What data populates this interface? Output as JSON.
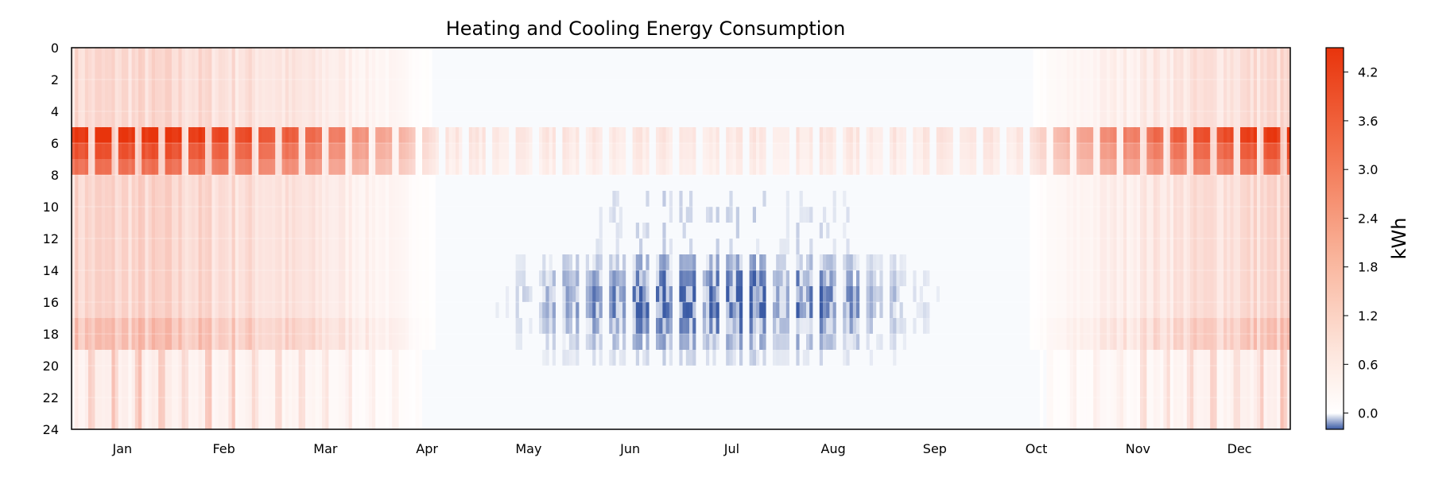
{
  "chart_data": {
    "type": "heatmap",
    "title": "Heating and Cooling Energy Consumption",
    "xlabel": "",
    "ylabel": "",
    "x_tick_labels": [
      "Jan",
      "Feb",
      "Mar",
      "Apr",
      "May",
      "Jun",
      "Jul",
      "Aug",
      "Sep",
      "Oct",
      "Nov",
      "Dec"
    ],
    "x_range_days": [
      1,
      365
    ],
    "y_range_hours": [
      0,
      24
    ],
    "y_tick_labels": [
      "0",
      "2",
      "4",
      "6",
      "8",
      "10",
      "12",
      "14",
      "16",
      "18",
      "20",
      "22",
      "24"
    ],
    "y_inverted": true,
    "colorbar": {
      "label": "kWh",
      "tick_labels": [
        "0.0",
        "0.6",
        "1.2",
        "1.8",
        "2.4",
        "3.0",
        "3.6",
        "4.2"
      ],
      "range": [
        -0.2,
        4.5
      ],
      "colors": {
        "cooling": "#3b5ba5",
        "zero": "#ffffff",
        "heating": "#e8340c"
      }
    },
    "description_of_pattern": {
      "heating_months": [
        "Jan",
        "Feb",
        "Mar",
        "Apr",
        "Oct",
        "Nov",
        "Dec"
      ],
      "cooling_months": [
        "May",
        "Jun",
        "Jul",
        "Aug",
        "Sep"
      ],
      "morning_heating_peak_hours": [
        5,
        8
      ],
      "morning_peak_max_kWh": 4.5,
      "evening_heating_hours": [
        17,
        19
      ],
      "cooling_peak_hours": [
        13,
        19
      ],
      "cooling_peak_min_kWh": -0.2
    },
    "grid": true
  }
}
